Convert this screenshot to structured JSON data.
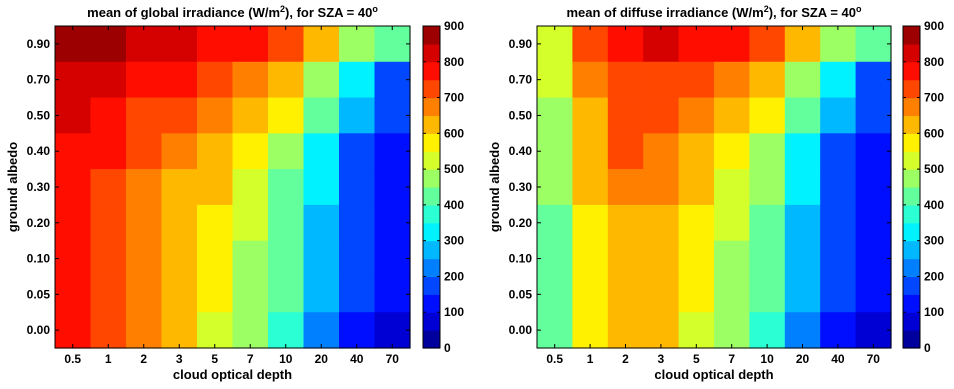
{
  "chart_data": [
    {
      "type": "heatmap",
      "title": "mean of global irradiance (W/m²), for SZA = 40°",
      "title_parts": {
        "pre": "mean of global irradiance (W/m",
        "sup1": "2",
        "mid": "), for SZA = 40",
        "sup2": "o"
      },
      "xlabel": "cloud optical depth",
      "ylabel": "ground albedo",
      "x_categories": [
        "0.5",
        "1",
        "2",
        "3",
        "5",
        "7",
        "10",
        "20",
        "40",
        "70"
      ],
      "y_categories": [
        "0.90",
        "0.70",
        "0.50",
        "0.40",
        "0.30",
        "0.20",
        "0.10",
        "0.05",
        "0.00"
      ],
      "colorbar": {
        "ticks": [
          "900",
          "800",
          "700",
          "600",
          "500",
          "400",
          "300",
          "200",
          "100",
          "0"
        ],
        "min": 0,
        "max": 900,
        "levels": 18
      },
      "values": [
        [
          875,
          875,
          825,
          825,
          775,
          775,
          725,
          625,
          475,
          425
        ],
        [
          825,
          825,
          775,
          775,
          725,
          675,
          625,
          475,
          325,
          175
        ],
        [
          825,
          775,
          725,
          725,
          675,
          625,
          575,
          425,
          275,
          175
        ],
        [
          775,
          775,
          725,
          675,
          625,
          575,
          475,
          325,
          175,
          125
        ],
        [
          775,
          725,
          675,
          625,
          625,
          525,
          425,
          325,
          175,
          125
        ],
        [
          775,
          725,
          675,
          625,
          575,
          525,
          425,
          275,
          175,
          125
        ],
        [
          775,
          725,
          675,
          625,
          575,
          475,
          425,
          275,
          175,
          125
        ],
        [
          775,
          725,
          675,
          625,
          575,
          475,
          425,
          275,
          175,
          125
        ],
        [
          775,
          725,
          675,
          625,
          525,
          475,
          375,
          225,
          125,
          75
        ]
      ]
    },
    {
      "type": "heatmap",
      "title": "mean of diffuse irradiance (W/m²), for SZA = 40°",
      "title_parts": {
        "pre": "mean of diffuse irradiance (W/m",
        "sup1": "2",
        "mid": "), for SZA = 40",
        "sup2": "o"
      },
      "xlabel": "cloud optical depth",
      "ylabel": "ground albedo",
      "x_categories": [
        "0.5",
        "1",
        "2",
        "3",
        "5",
        "7",
        "10",
        "20",
        "40",
        "70"
      ],
      "y_categories": [
        "0.90",
        "0.70",
        "0.50",
        "0.40",
        "0.30",
        "0.20",
        "0.10",
        "0.05",
        "0.00"
      ],
      "colorbar": {
        "ticks": [
          "900",
          "800",
          "700",
          "600",
          "500",
          "400",
          "300",
          "200",
          "100",
          "0"
        ],
        "min": 0,
        "max": 900,
        "levels": 18
      },
      "values": [
        [
          525,
          725,
          775,
          825,
          775,
          775,
          725,
          625,
          475,
          425
        ],
        [
          525,
          675,
          725,
          725,
          725,
          675,
          625,
          475,
          325,
          175
        ],
        [
          475,
          625,
          725,
          725,
          675,
          625,
          575,
          425,
          275,
          175
        ],
        [
          475,
          625,
          725,
          675,
          625,
          575,
          475,
          325,
          175,
          125
        ],
        [
          475,
          625,
          675,
          675,
          625,
          525,
          475,
          325,
          175,
          125
        ],
        [
          425,
          575,
          625,
          625,
          575,
          525,
          425,
          275,
          175,
          125
        ],
        [
          425,
          575,
          625,
          625,
          575,
          475,
          425,
          275,
          175,
          125
        ],
        [
          425,
          575,
          625,
          625,
          575,
          475,
          425,
          275,
          175,
          125
        ],
        [
          425,
          575,
          625,
          625,
          525,
          475,
          375,
          225,
          125,
          75
        ]
      ]
    }
  ]
}
